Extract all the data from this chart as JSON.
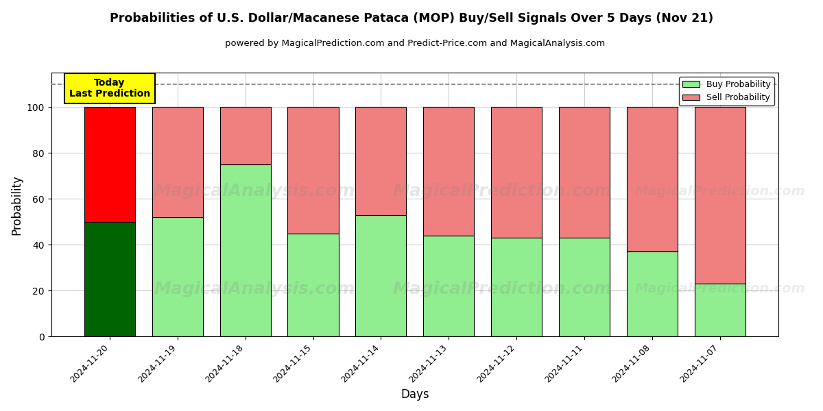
{
  "title": "Probabilities of U.S. Dollar/Macanese Pataca (MOP) Buy/Sell Signals Over 5 Days (Nov 21)",
  "subtitle": "powered by MagicalPrediction.com and Predict-Price.com and MagicalAnalysis.com",
  "xlabel": "Days",
  "ylabel": "Probability",
  "categories": [
    "2024-11-20",
    "2024-11-19",
    "2024-11-18",
    "2024-11-15",
    "2024-11-14",
    "2024-11-13",
    "2024-11-12",
    "2024-11-11",
    "2024-11-08",
    "2024-11-07"
  ],
  "buy_values": [
    50,
    52,
    75,
    45,
    53,
    44,
    43,
    43,
    37,
    23
  ],
  "sell_values": [
    50,
    48,
    25,
    55,
    47,
    56,
    57,
    57,
    63,
    77
  ],
  "buy_colors": [
    "#006400",
    "#90EE90",
    "#90EE90",
    "#90EE90",
    "#90EE90",
    "#90EE90",
    "#90EE90",
    "#90EE90",
    "#90EE90",
    "#90EE90"
  ],
  "sell_colors": [
    "#FF0000",
    "#F08080",
    "#F08080",
    "#F08080",
    "#F08080",
    "#F08080",
    "#F08080",
    "#F08080",
    "#F08080",
    "#F08080"
  ],
  "today_label": "Today\nLast Prediction",
  "legend_buy_color": "#90EE90",
  "legend_sell_color": "#F08080",
  "dashed_line_y": 110,
  "ylim": [
    0,
    115
  ],
  "yticks": [
    0,
    20,
    40,
    60,
    80,
    100
  ],
  "background_color": "#ffffff",
  "grid_color": "#cccccc",
  "bar_edge_color": "#000000",
  "bar_linewidth": 0.8
}
